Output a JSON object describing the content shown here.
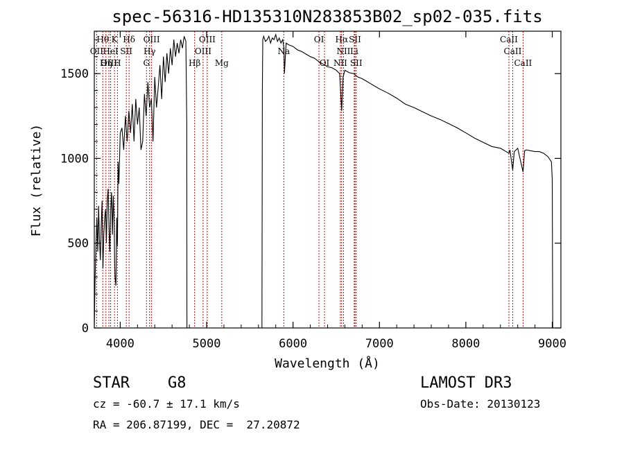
{
  "chart_data": {
    "type": "line",
    "title": "spec-56316-HD135310N283853B02_sp02-035.fits",
    "xlabel": "Wavelength (Å)",
    "ylabel": "Flux (relative)",
    "xlim": [
      3700,
      9100
    ],
    "ylim": [
      0,
      1750
    ],
    "x_ticks": [
      4000,
      5000,
      6000,
      7000,
      8000,
      9000
    ],
    "y_ticks": [
      0,
      500,
      1000,
      1500
    ],
    "grid": false,
    "series": [
      {
        "name": "flux",
        "x": [
          3700,
          3710,
          3720,
          3730,
          3740,
          3750,
          3760,
          3770,
          3780,
          3790,
          3800,
          3810,
          3820,
          3830,
          3840,
          3850,
          3860,
          3870,
          3880,
          3890,
          3900,
          3910,
          3920,
          3930,
          3935,
          3940,
          3950,
          3960,
          3968,
          3975,
          3985,
          4000,
          4020,
          4040,
          4060,
          4080,
          4100,
          4120,
          4140,
          4160,
          4180,
          4200,
          4220,
          4240,
          4260,
          4280,
          4300,
          4320,
          4340,
          4360,
          4380,
          4400,
          4420,
          4440,
          4460,
          4480,
          4500,
          4520,
          4540,
          4560,
          4580,
          4600,
          4620,
          4640,
          4660,
          4680,
          4700,
          4720,
          4740,
          4760,
          4770,
          4772,
          4780,
          5640,
          5645,
          5650,
          5660,
          5680,
          5700,
          5720,
          5740,
          5760,
          5780,
          5800,
          5820,
          5840,
          5860,
          5880,
          5895,
          5900,
          5920,
          5950,
          6000,
          6050,
          6100,
          6150,
          6200,
          6250,
          6300,
          6350,
          6400,
          6450,
          6500,
          6540,
          6563,
          6580,
          6600,
          6650,
          6700,
          6750,
          6800,
          6850,
          6900,
          6950,
          7000,
          7100,
          7200,
          7300,
          7400,
          7500,
          7600,
          7700,
          7800,
          7900,
          8000,
          8100,
          8200,
          8300,
          8400,
          8498,
          8510,
          8542,
          8560,
          8600,
          8662,
          8680,
          8700,
          8750,
          8800,
          8850,
          8900,
          8950,
          8990,
          9000,
          9005
        ],
        "values": [
          0,
          300,
          500,
          650,
          450,
          720,
          520,
          400,
          600,
          750,
          350,
          550,
          650,
          700,
          500,
          750,
          820,
          600,
          450,
          700,
          800,
          550,
          780,
          620,
          400,
          300,
          250,
          650,
          480,
          980,
          850,
          1150,
          1180,
          1050,
          1250,
          1100,
          1280,
          1150,
          1320,
          1100,
          1350,
          1200,
          1300,
          1050,
          1100,
          1380,
          1250,
          1450,
          1300,
          1350,
          1100,
          1480,
          1300,
          1420,
          1550,
          1350,
          1600,
          1450,
          1620,
          1500,
          1650,
          1550,
          1700,
          1600,
          1680,
          1620,
          1700,
          1650,
          1720,
          1690,
          1200,
          0,
          0,
          0,
          1400,
          1700,
          1720,
          1690,
          1700,
          1720,
          1680,
          1710,
          1700,
          1730,
          1690,
          1710,
          1680,
          1700,
          1650,
          1500,
          1680,
          1670,
          1660,
          1640,
          1630,
          1615,
          1600,
          1590,
          1570,
          1555,
          1540,
          1535,
          1520,
          1500,
          1280,
          1480,
          1520,
          1505,
          1500,
          1480,
          1470,
          1455,
          1440,
          1425,
          1410,
          1385,
          1355,
          1320,
          1300,
          1275,
          1250,
          1230,
          1205,
          1180,
          1150,
          1120,
          1095,
          1070,
          1060,
          1030,
          1050,
          930,
          1040,
          1060,
          920,
          1045,
          1050,
          1045,
          1040,
          1040,
          1030,
          1010,
          980,
          880,
          0
        ]
      }
    ],
    "line_markers": [
      {
        "label": "OII",
        "wavelength": 3727
      },
      {
        "label": "Hθ",
        "wavelength": 3798
      },
      {
        "label": "Hη",
        "wavelength": 3835
      },
      {
        "label": "OIII",
        "wavelength": 3869
      },
      {
        "label": "HeI",
        "wavelength": 3889
      },
      {
        "label": "K",
        "wavelength": 3934
      },
      {
        "label": "H",
        "wavelength": 3968
      },
      {
        "label": "SII",
        "wavelength": 4070
      },
      {
        "label": "Hδ",
        "wavelength": 4102
      },
      {
        "label": "G",
        "wavelength": 4304
      },
      {
        "label": "Hγ",
        "wavelength": 4340
      },
      {
        "label": "OIII",
        "wavelength": 4363
      },
      {
        "label": "Hβ",
        "wavelength": 4861
      },
      {
        "label": "OIII",
        "wavelength": 4959
      },
      {
        "label": "OIII",
        "wavelength": 5007
      },
      {
        "label": "Mg",
        "wavelength": 5175
      },
      {
        "label": "Na",
        "wavelength": 5893
      },
      {
        "label": "OI",
        "wavelength": 6300
      },
      {
        "label": "OI",
        "wavelength": 6364
      },
      {
        "label": "NII",
        "wavelength": 6548
      },
      {
        "label": "Hα",
        "wavelength": 6563
      },
      {
        "label": "NII",
        "wavelength": 6584
      },
      {
        "label": "Li",
        "wavelength": 6708
      },
      {
        "label": "SII",
        "wavelength": 6717
      },
      {
        "label": "SII",
        "wavelength": 6731
      },
      {
        "label": "CaII",
        "wavelength": 8498
      },
      {
        "label": "CaII",
        "wavelength": 8542
      },
      {
        "label": "CaII",
        "wavelength": 8662
      }
    ],
    "marker_label_rows": [
      [
        {
          "text": "Hθ",
          "x": 3798
        },
        {
          "text": "K",
          "x": 3934
        },
        {
          "text": "Hδ",
          "x": 4102
        },
        {
          "text": "OIII",
          "x": 4363
        },
        {
          "text": "OIII",
          "x": 5007
        },
        {
          "text": "OI",
          "x": 6300
        },
        {
          "text": "Hα",
          "x": 6563
        },
        {
          "text": "SII",
          "x": 6717
        },
        {
          "text": "CaII",
          "x": 8498
        }
      ],
      [
        {
          "text": "OII",
          "x": 3727
        },
        {
          "text": "HeI",
          "x": 3889
        },
        {
          "text": "SII",
          "x": 4070
        },
        {
          "text": "Hγ",
          "x": 4340
        },
        {
          "text": "OIII",
          "x": 4959
        },
        {
          "text": "Na",
          "x": 5893
        },
        {
          "text": "NII",
          "x": 6584
        },
        {
          "text": "Li",
          "x": 6708
        },
        {
          "text": "CaII",
          "x": 8542
        }
      ],
      [
        {
          "text": "OIII",
          "x": 3869
        },
        {
          "text": "Hη",
          "x": 3835
        },
        {
          "text": "H",
          "x": 3968
        },
        {
          "text": "G",
          "x": 4304
        },
        {
          "text": "Hβ",
          "x": 4861
        },
        {
          "text": "Mg",
          "x": 5175
        },
        {
          "text": "OI",
          "x": 6364
        },
        {
          "text": "NII",
          "x": 6548
        },
        {
          "text": "SII",
          "x": 6731
        },
        {
          "text": "CaII",
          "x": 8662
        }
      ]
    ]
  },
  "info": {
    "class_label": "STAR",
    "subclass": "G8",
    "survey": "LAMOST DR3",
    "cz": "cz = -60.7 ± 17.1 km/s",
    "obs_date": "Obs-Date: 20130123",
    "coords": "RA = 206.87199, DEC =  27.20872"
  },
  "colors": {
    "marker_line": "#cc0000",
    "spectrum": "#000000",
    "axes": "#000000"
  }
}
